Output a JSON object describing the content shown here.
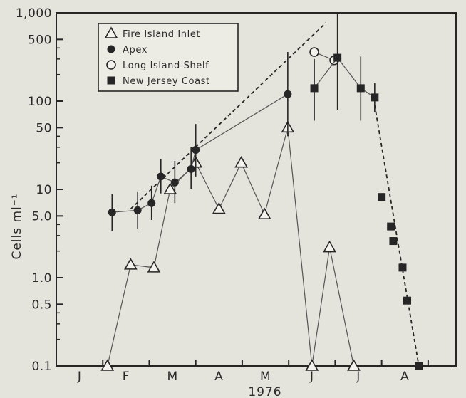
{
  "chart_data": {
    "type": "scatter",
    "y_scale": "log",
    "ylabel": "Cells ml⁻¹",
    "xlabel": "1976",
    "ylim": [
      0.1,
      1000
    ],
    "y_ticks": [
      {
        "value": 1000,
        "label": "1,000"
      },
      {
        "value": 500,
        "label": "500"
      },
      {
        "value": 100,
        "label": "100"
      },
      {
        "value": 50,
        "label": "50"
      },
      {
        "value": 10,
        "label": "10"
      },
      {
        "value": 5,
        "label": "5.0"
      },
      {
        "value": 1,
        "label": "1.0"
      },
      {
        "value": 0.5,
        "label": "0.5"
      },
      {
        "value": 0.1,
        "label": "0.1"
      }
    ],
    "x_range_months": [
      0,
      8.6
    ],
    "x_ticks": [
      {
        "value": 0.5,
        "label": "J"
      },
      {
        "value": 1.5,
        "label": "F"
      },
      {
        "value": 2.5,
        "label": "M"
      },
      {
        "value": 3.5,
        "label": "A"
      },
      {
        "value": 4.5,
        "label": "M"
      },
      {
        "value": 5.5,
        "label": "J"
      },
      {
        "value": 6.5,
        "label": "J"
      },
      {
        "value": 7.5,
        "label": "A"
      }
    ],
    "month_boundaries": [
      1,
      2,
      3,
      4,
      5,
      6,
      7,
      8
    ],
    "legend_position": "top-left",
    "series": [
      {
        "name": "Fire Island Inlet",
        "marker": "triangle-open",
        "connected": true,
        "points": [
          {
            "x": 1.1,
            "y": 0.1
          },
          {
            "x": 1.6,
            "y": 1.4
          },
          {
            "x": 2.1,
            "y": 1.3
          },
          {
            "x": 2.45,
            "y": 10
          },
          {
            "x": 3.0,
            "y": 20
          },
          {
            "x": 3.5,
            "y": 6
          },
          {
            "x": 3.98,
            "y": 20
          },
          {
            "x": 4.48,
            "y": 5.2
          },
          {
            "x": 4.98,
            "y": 50
          },
          {
            "x": 5.5,
            "y": 0.1
          },
          {
            "x": 5.88,
            "y": 2.2
          },
          {
            "x": 6.4,
            "y": 0.1
          }
        ]
      },
      {
        "name": "Apex",
        "marker": "circle-filled",
        "connected": true,
        "points": [
          {
            "x": 1.2,
            "y": 5.5,
            "err": [
              3.4,
              8.8
            ]
          },
          {
            "x": 1.75,
            "y": 5.8,
            "err": [
              3.6,
              9.5
            ]
          },
          {
            "x": 2.05,
            "y": 7,
            "err": [
              4.5,
              11
            ]
          },
          {
            "x": 2.25,
            "y": 14,
            "err": [
              9,
              22
            ]
          },
          {
            "x": 2.55,
            "y": 12,
            "err": [
              7,
              21
            ]
          },
          {
            "x": 2.9,
            "y": 17,
            "err": [
              10,
              30
            ]
          },
          {
            "x": 3.0,
            "y": 28,
            "err": [
              14,
              55
            ]
          },
          {
            "x": 4.98,
            "y": 120,
            "err": [
              40,
              360
            ]
          }
        ]
      },
      {
        "name": "Long Island Shelf",
        "marker": "circle-open",
        "connected": true,
        "points": [
          {
            "x": 5.55,
            "y": 360
          },
          {
            "x": 5.98,
            "y": 290
          }
        ]
      },
      {
        "name": "New Jersey Coast",
        "marker": "square-filled",
        "connected": true,
        "points": [
          {
            "x": 5.55,
            "y": 140,
            "err": [
              60,
              300
            ]
          },
          {
            "x": 6.05,
            "y": 310,
            "err": [
              80,
              1000
            ]
          },
          {
            "x": 6.55,
            "y": 140,
            "err": [
              60,
              320
            ]
          },
          {
            "x": 6.85,
            "y": 110,
            "err": [
              75,
              160
            ]
          }
        ]
      },
      {
        "name": "",
        "marker": "square-filled",
        "connected": false,
        "points": [
          {
            "x": 7.0,
            "y": 8.2
          },
          {
            "x": 7.2,
            "y": 3.8
          },
          {
            "x": 7.25,
            "y": 2.6
          },
          {
            "x": 7.45,
            "y": 1.3
          },
          {
            "x": 7.55,
            "y": 0.55
          },
          {
            "x": 7.8,
            "y": 0.1
          }
        ]
      }
    ],
    "trend_lines": [
      {
        "style": "dashed",
        "from": {
          "x": 1.6,
          "y": 6
        },
        "to": {
          "x": 5.8,
          "y": 770
        }
      },
      {
        "style": "dashed",
        "from": {
          "x": 6.85,
          "y": 90
        },
        "to": {
          "x": 7.8,
          "y": 0.1
        }
      }
    ]
  }
}
